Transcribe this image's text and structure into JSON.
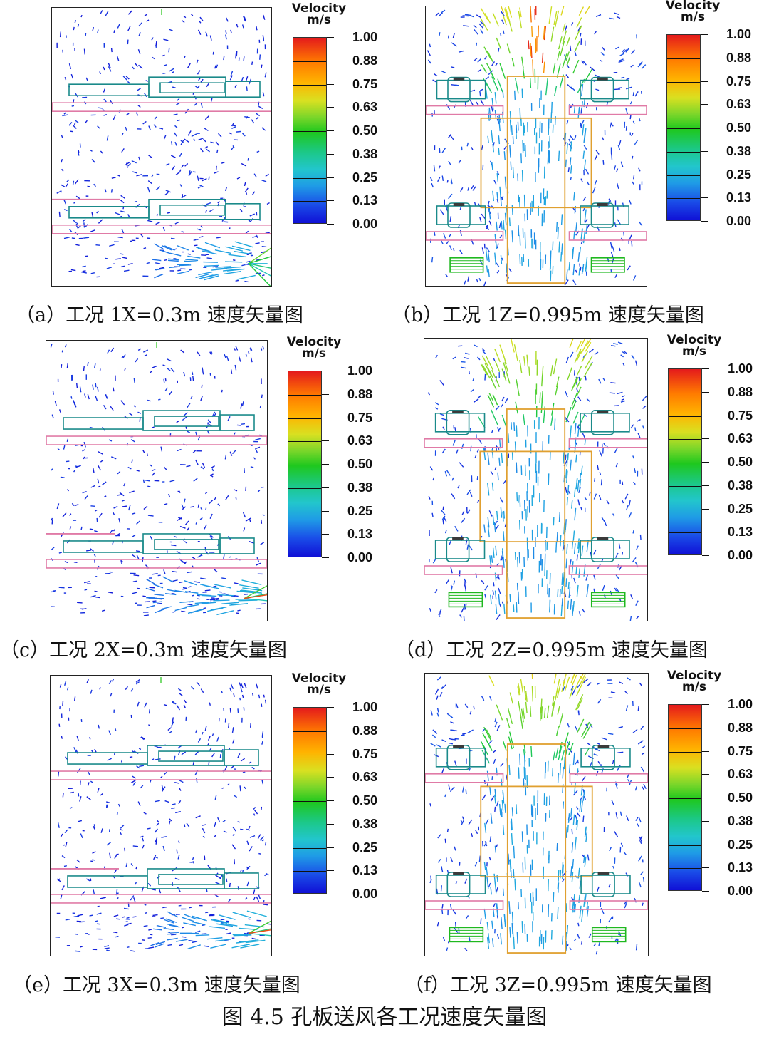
{
  "figure_title": "图 4.5  孔板送风各工况速度矢量图",
  "legend": {
    "title": "Velocity",
    "unit": "m/s",
    "ticks": [
      "1.00",
      "0.88",
      "0.75",
      "0.63",
      "0.50",
      "0.38",
      "0.25",
      "0.13",
      "0.00"
    ]
  },
  "panels": [
    {
      "id": "a",
      "caption": "（a）工况 1X=0.3m 速度矢量图",
      "view": "x",
      "case": 1
    },
    {
      "id": "b",
      "caption": "（b）工况 1Z=0.995m 速度矢量图",
      "view": "z",
      "case": 1
    },
    {
      "id": "c",
      "caption": "（c）工况 2X=0.3m 速度矢量图",
      "view": "x",
      "case": 2
    },
    {
      "id": "d",
      "caption": "（d）工况 2Z=0.995m 速度矢量图",
      "view": "z",
      "case": 2
    },
    {
      "id": "e",
      "caption": "（e）工况 3X=0.3m 速度矢量图",
      "view": "x",
      "case": 3
    },
    {
      "id": "f",
      "caption": "（f）工况 3Z=0.995m 速度矢量图",
      "view": "z",
      "case": 3
    }
  ],
  "colors": {
    "equipment": "#1a8a8a",
    "floor": "#e07aa6",
    "duct": "#e0a030",
    "coil": "#1fb81f"
  }
}
